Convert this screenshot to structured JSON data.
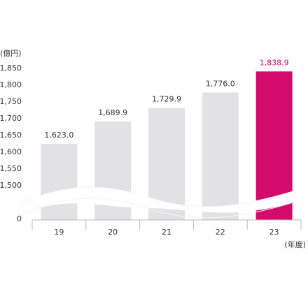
{
  "chart_data": {
    "type": "bar",
    "y_unit_label": "(億円)",
    "x_unit_label": "(年度)",
    "categories": [
      "19",
      "20",
      "21",
      "22",
      "23"
    ],
    "values": [
      1623.0,
      1689.9,
      1729.9,
      1776.0,
      1838.9
    ],
    "value_labels": [
      "1,623.0",
      "1,689.9",
      "1,729.9",
      "1,776.0",
      "1,838.9"
    ],
    "y_ticks": [
      {
        "value": 1850,
        "label": "1,850"
      },
      {
        "value": 1800,
        "label": "1,800"
      },
      {
        "value": 1750,
        "label": "1,750"
      },
      {
        "value": 1700,
        "label": "1,700"
      },
      {
        "value": 1650,
        "label": "1,650"
      },
      {
        "value": 1600,
        "label": "1,600"
      },
      {
        "value": 1550,
        "label": "1,550"
      },
      {
        "value": 1500,
        "label": "1,500"
      },
      {
        "value": 0,
        "label": "0"
      }
    ],
    "ylim": [
      1500,
      1850
    ],
    "axis_break": true,
    "highlight_index": 4,
    "colors": {
      "bar": "#e2e1e3",
      "highlight_bar": "#d30b6b",
      "highlight_label": "#d30b6b",
      "text": "#333333",
      "axis": "#b9b9b9"
    }
  }
}
